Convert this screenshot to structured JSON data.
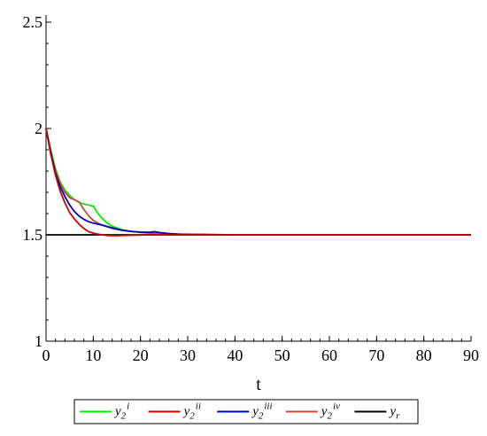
{
  "chart_data": {
    "type": "line",
    "xlabel": "t",
    "ylabel": "",
    "xlim": [
      0,
      90
    ],
    "ylim": [
      1,
      2.5
    ],
    "x_ticks": [
      0,
      10,
      20,
      30,
      40,
      50,
      60,
      70,
      80,
      90
    ],
    "y_ticks": [
      {
        "value": 1,
        "label": "1"
      },
      {
        "value": 1.5,
        "label": "1.5"
      },
      {
        "value": 2,
        "label": "2"
      },
      {
        "value": 2.5,
        "label": "2.5"
      }
    ],
    "y_minor_step": 0.1,
    "x_minor_step": 2,
    "grid": false,
    "legend_position": "bottom",
    "series": [
      {
        "legend": {
          "base": "y",
          "sub": "2",
          "sup": "i"
        },
        "color": "#00ee00",
        "x": [
          0,
          1,
          2,
          3,
          4,
          5,
          6,
          7,
          8,
          9,
          10,
          11,
          12,
          13,
          14,
          16,
          18,
          20,
          22,
          25,
          28,
          30,
          35,
          40,
          50,
          60,
          70,
          80,
          90
        ],
        "y": [
          2.0,
          1.9,
          1.81,
          1.75,
          1.71,
          1.685,
          1.665,
          1.652,
          1.645,
          1.64,
          1.635,
          1.6,
          1.575,
          1.555,
          1.54,
          1.525,
          1.516,
          1.511,
          1.508,
          1.505,
          1.503,
          1.502,
          1.501,
          1.5,
          1.5,
          1.5,
          1.5,
          1.5,
          1.5
        ]
      },
      {
        "legend": {
          "base": "y",
          "sub": "2",
          "sup": "ii"
        },
        "color": "#cc0000",
        "x": [
          0,
          1,
          2,
          3,
          4,
          5,
          6,
          7,
          8,
          9,
          10,
          11,
          12,
          13,
          14,
          15,
          16,
          18,
          20,
          22,
          25,
          30,
          35,
          40,
          50,
          60,
          70,
          80,
          90
        ],
        "y": [
          2.0,
          1.88,
          1.78,
          1.705,
          1.65,
          1.605,
          1.575,
          1.55,
          1.53,
          1.515,
          1.508,
          1.503,
          1.5,
          1.497,
          1.496,
          1.496,
          1.497,
          1.498,
          1.499,
          1.5,
          1.5,
          1.5,
          1.5,
          1.5,
          1.5,
          1.5,
          1.5,
          1.5,
          1.5
        ]
      },
      {
        "legend": {
          "base": "y",
          "sub": "2",
          "sup": "iii"
        },
        "color": "#0000bb",
        "x": [
          0,
          1,
          2,
          3,
          4,
          5,
          6,
          7,
          8,
          9,
          10,
          11,
          12,
          14,
          16,
          18,
          20,
          22,
          23,
          24,
          26,
          28,
          30,
          35,
          40,
          50,
          60,
          70,
          80,
          90
        ],
        "y": [
          2.0,
          1.89,
          1.79,
          1.725,
          1.68,
          1.64,
          1.61,
          1.588,
          1.573,
          1.562,
          1.555,
          1.55,
          1.545,
          1.533,
          1.522,
          1.516,
          1.513,
          1.512,
          1.515,
          1.511,
          1.506,
          1.503,
          1.502,
          1.501,
          1.5,
          1.5,
          1.5,
          1.5,
          1.5,
          1.5
        ]
      },
      {
        "legend": {
          "base": "y",
          "sub": "2",
          "sup": "iv"
        },
        "color": "#c8483c",
        "x": [
          0,
          1,
          2,
          3,
          4,
          5,
          6,
          7,
          8,
          9,
          10,
          11,
          12,
          14,
          16,
          18,
          20,
          22,
          25,
          28,
          30,
          35,
          40,
          50,
          60,
          70,
          80,
          90
        ],
        "y": [
          2.0,
          1.88,
          1.8,
          1.74,
          1.7,
          1.675,
          1.665,
          1.655,
          1.62,
          1.59,
          1.568,
          1.555,
          1.545,
          1.53,
          1.522,
          1.516,
          1.512,
          1.509,
          1.505,
          1.503,
          1.502,
          1.501,
          1.5,
          1.5,
          1.5,
          1.5,
          1.5,
          1.5
        ]
      },
      {
        "legend": {
          "base": "y",
          "sub": "r",
          "sup": ""
        },
        "color": "#000000",
        "x": [
          0,
          90
        ],
        "y": [
          1.5,
          1.5
        ]
      }
    ]
  }
}
